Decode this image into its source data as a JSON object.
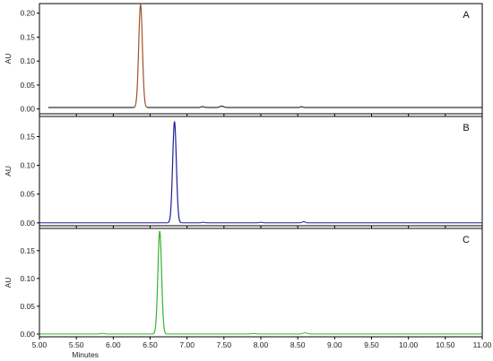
{
  "chart_data": {
    "type": "line",
    "xlabel": "Minutes",
    "xlim": [
      5.0,
      11.0
    ],
    "x_ticks": [
      "5.00",
      "5.50",
      "6.00",
      "6.50",
      "7.00",
      "7.50",
      "8.00",
      "8.50",
      "9.00",
      "9.50",
      "10.00",
      "10.50",
      "11.00"
    ],
    "x_tick_values": [
      5.0,
      5.5,
      6.0,
      6.5,
      7.0,
      7.5,
      8.0,
      8.5,
      9.0,
      9.5,
      10.0,
      10.5,
      11.0
    ],
    "panels": [
      {
        "label": "A",
        "ylabel": "AU",
        "ylim": [
          -0.01,
          0.22
        ],
        "y_ticks": [
          "0.00",
          "0.05",
          "0.10",
          "0.15",
          "0.20"
        ],
        "y_tick_values": [
          0,
          0.05,
          0.1,
          0.15,
          0.2
        ],
        "baseline": 0.003,
        "trace_start": 5.12,
        "peak": {
          "x": 6.37,
          "height": 0.215,
          "width": 0.025
        },
        "peak_color": "#a0522d",
        "line_color": "#000000",
        "minor_peaks": [
          {
            "x": 7.21,
            "height": 0.002,
            "width": 0.02
          },
          {
            "x": 7.47,
            "height": 0.003,
            "width": 0.025
          },
          {
            "x": 8.55,
            "height": 0.002,
            "width": 0.015
          }
        ]
      },
      {
        "label": "B",
        "ylabel": "AU",
        "ylim": [
          -0.005,
          0.185
        ],
        "y_ticks": [
          "0.00",
          "0.05",
          "0.10",
          "0.15"
        ],
        "y_tick_values": [
          0,
          0.05,
          0.1,
          0.15
        ],
        "baseline": 0.0,
        "trace_start": 5.0,
        "peak": {
          "x": 6.83,
          "height": 0.176,
          "width": 0.025
        },
        "peak_color": "#1f1f9a",
        "line_color": "#1f1f9a",
        "minor_peaks": [
          {
            "x": 7.22,
            "height": 0.001,
            "width": 0.02
          },
          {
            "x": 8.0,
            "height": 0.001,
            "width": 0.02
          },
          {
            "x": 8.58,
            "height": 0.002,
            "width": 0.02
          }
        ]
      },
      {
        "label": "C",
        "ylabel": "AU",
        "ylim": [
          -0.005,
          0.19
        ],
        "y_ticks": [
          "0.00",
          "0.05",
          "0.10",
          "0.15"
        ],
        "y_tick_values": [
          0,
          0.05,
          0.1,
          0.15
        ],
        "baseline": 0.0,
        "trace_start": 5.0,
        "peak": {
          "x": 6.63,
          "height": 0.185,
          "width": 0.025
        },
        "peak_color": "#33b233",
        "line_color": "#33b233",
        "minor_peaks": [
          {
            "x": 5.85,
            "height": 0.001,
            "width": 0.03
          },
          {
            "x": 7.9,
            "height": 0.001,
            "width": 0.03
          },
          {
            "x": 8.6,
            "height": 0.002,
            "width": 0.03
          }
        ]
      }
    ]
  }
}
